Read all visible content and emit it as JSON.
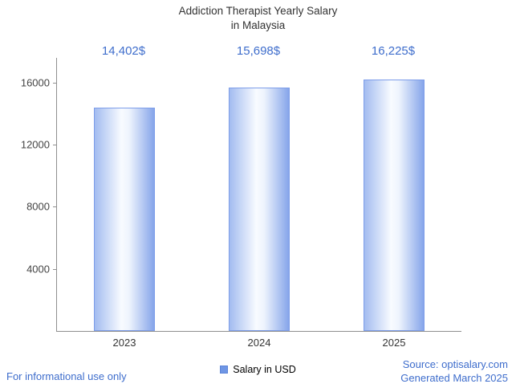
{
  "title": {
    "line1": "Addiction Therapist Yearly Salary",
    "line2": "in Malaysia"
  },
  "legend": {
    "label": "Salary in USD",
    "swatch_color": "#6f96e5"
  },
  "footer": {
    "disclaimer": "For informational use only",
    "source": "Source: optisalary.com",
    "generated": "Generated March 2025"
  },
  "colors": {
    "accent_text": "#3e6dcc",
    "axis": "#8f8f8f",
    "bar_border": "#7d9de9",
    "bar_gradient_left": "#a3bcf0",
    "bar_gradient_mid": "#f8fbff",
    "bar_gradient_right": "#86a5ea",
    "title_text": "#333333"
  },
  "chart_data": {
    "type": "bar",
    "title": "Addiction Therapist Yearly Salary in Malaysia",
    "categories": [
      "2023",
      "2024",
      "2025"
    ],
    "values": [
      14402,
      15698,
      16225
    ],
    "value_labels": [
      "14,402$",
      "15,698$",
      "16,225$"
    ],
    "series_name": "Salary in USD",
    "xlabel": "",
    "ylabel": "",
    "ylim": [
      0,
      17600
    ],
    "yticks": [
      4000,
      8000,
      12000,
      16000
    ],
    "grid": false,
    "legend_position": "bottom"
  }
}
